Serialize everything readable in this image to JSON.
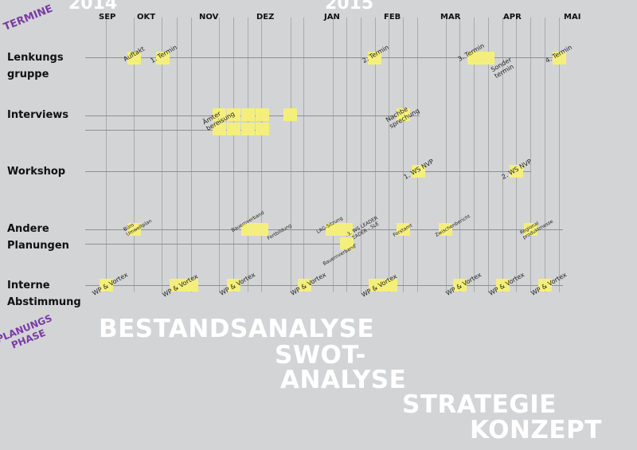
{
  "labels": {
    "termine": "TERMINE",
    "planungsphase": "PLANUNGS\nPHASE"
  },
  "years": [
    "2014",
    "2015"
  ],
  "months": [
    "SEP",
    "OKT",
    "NOV",
    "DEZ",
    "JAN",
    "FEB",
    "MAR",
    "APR",
    "MAI"
  ],
  "rows": [
    "Lenkungs\ngruppe",
    "Interviews",
    "Workshop",
    "Andere\nPlanungen",
    "Interne\nAbstimmung"
  ],
  "lenkung": [
    "Auftakt",
    "1. Termin",
    "2. Termin",
    "3. Termin",
    "Sonder\ntermin",
    "4. Termin"
  ],
  "interviews": [
    "Ämter\nbereisung",
    "Nachbe\nsprechung"
  ],
  "workshop": [
    "1. WS NVP",
    "2. WS NVP"
  ],
  "andere": [
    "Büro\nUmweltplan",
    "Bauernverband",
    "Fortbildung",
    "LAG-Sitzung",
    "3. WS LEADER\nLEADER - SLE",
    "Bauernverband",
    "Forstamt",
    "Zwischenbericht",
    "Regional\nproduktmesse"
  ],
  "interne": "WP & Vortex",
  "phases": [
    "BESTANDSANALYSE",
    "SWOT-",
    "ANALYSE",
    "STRATEGIE",
    "KONZEPT"
  ],
  "colors": {
    "background": "#d3d4d6",
    "note": "#f4ef7c",
    "accent": "#7b3aa4"
  }
}
